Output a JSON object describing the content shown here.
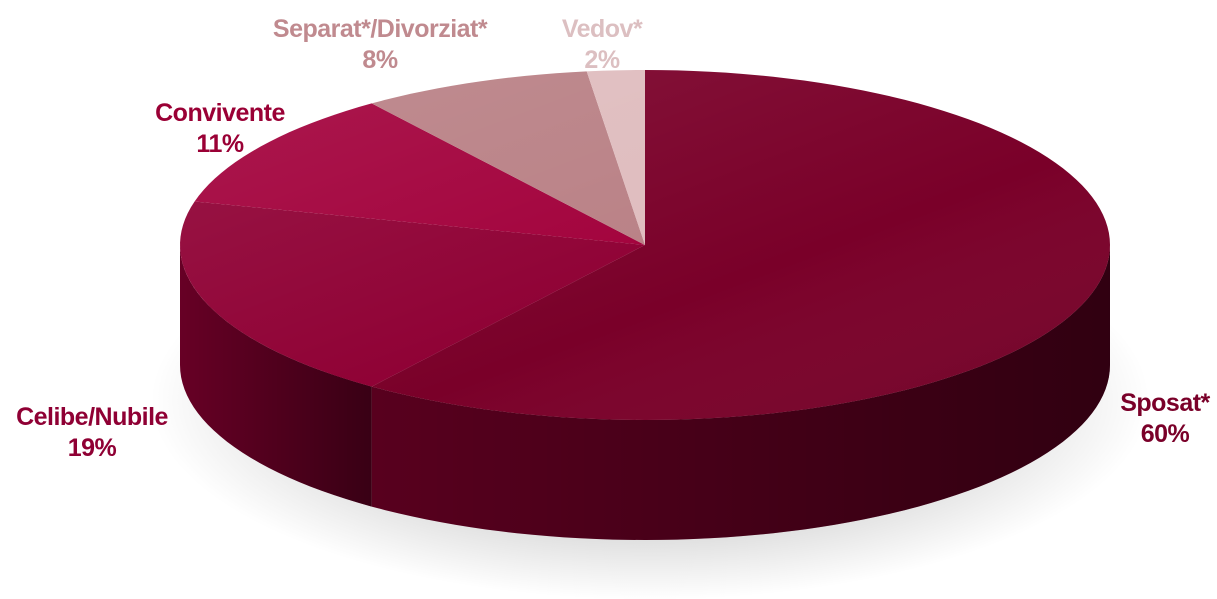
{
  "chart_data": {
    "type": "pie",
    "title": "",
    "start_angle_deg": 0,
    "direction": "clockwise",
    "slices": [
      {
        "label": "Sposat*",
        "value": 60,
        "value_label": "60%",
        "color": "#7a0029",
        "label_color": "#7a0029"
      },
      {
        "label": "Celibe/Nubile",
        "value": 19,
        "value_label": "19%",
        "color": "#8f0034",
        "label_color": "#8f0034"
      },
      {
        "label": "Convivente",
        "value": 11,
        "value_label": "11%",
        "color": "#a2003b",
        "label_color": "#9a0035"
      },
      {
        "label": "Separat*/Divorziat*",
        "value": 8,
        "value_label": "8%",
        "color": "#b98085",
        "label_color": "#c08a8f"
      },
      {
        "label": "Vedov*",
        "value": 2,
        "value_label": "2%",
        "color": "#dfbcbe",
        "label_color": "#dcbfc1"
      }
    ],
    "legend": "none",
    "style": "3d"
  }
}
